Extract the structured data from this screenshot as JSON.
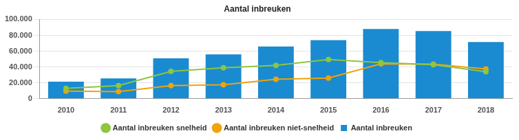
{
  "chart_data": {
    "type": "bar",
    "title": "Aantal inbreuken",
    "categories": [
      "2010",
      "2011",
      "2012",
      "2013",
      "2014",
      "2015",
      "2016",
      "2017",
      "2018"
    ],
    "series": [
      {
        "name": "Aantal inbreuken",
        "type": "bar",
        "color": "#1a8bd0",
        "values": [
          21500,
          25500,
          51000,
          56000,
          66000,
          74000,
          88000,
          85500,
          71500
        ]
      },
      {
        "name": "Aantal inbreuken snelheid",
        "type": "line",
        "color": "#8dc63f",
        "marker": "circle",
        "values": [
          13000,
          16500,
          34500,
          39000,
          42000,
          49500,
          45500,
          43000,
          34000
        ]
      },
      {
        "name": "Aantal inbreuken niet-snelheid",
        "type": "line",
        "color": "#f0a30a",
        "marker": "circle",
        "values": [
          9500,
          9000,
          16500,
          17500,
          24500,
          26000,
          44000,
          43500,
          37500
        ]
      }
    ],
    "ylim": [
      0,
      100000
    ],
    "yticks": [
      0,
      {
        "value": 20000,
        "label": "20.000"
      },
      {
        "value": 40000,
        "label": "40.000"
      },
      {
        "value": 60000,
        "label": "60.000"
      },
      {
        "value": 80000,
        "label": "80.000"
      },
      {
        "value": 100000,
        "label": "100.000"
      }
    ],
    "grid": true,
    "legend": "bottom"
  }
}
